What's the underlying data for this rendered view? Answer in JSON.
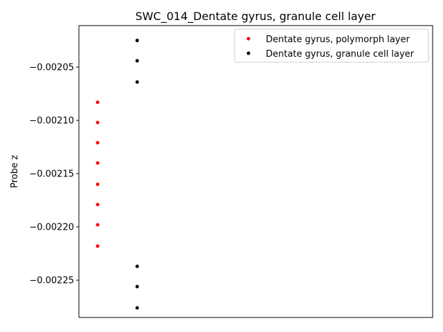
{
  "chart_data": {
    "type": "scatter",
    "title": "SWC_014_Dentate gyrus, granule cell layer",
    "xlabel": "",
    "ylabel": "Probe z",
    "ylim": [
      -0.002285,
      -0.002011
    ],
    "xlim": [
      0.15,
      1.0
    ],
    "x_ticks_visible": false,
    "grid": false,
    "legend_position": "top-right",
    "y_ticks": [
      {
        "value": -0.00205,
        "label": "−0.00205"
      },
      {
        "value": -0.0021,
        "label": "−0.00210"
      },
      {
        "value": -0.00215,
        "label": "−0.00215"
      },
      {
        "value": -0.0022,
        "label": "−0.00220"
      },
      {
        "value": -0.00225,
        "label": "−0.00225"
      }
    ],
    "series": [
      {
        "name": "Dentate gyrus, polymorph layer",
        "color": "#ff0000",
        "x": [
          0.195,
          0.195,
          0.195,
          0.195,
          0.195,
          0.195,
          0.195,
          0.195
        ],
        "y": [
          -0.002083,
          -0.002102,
          -0.002121,
          -0.00214,
          -0.00216,
          -0.002179,
          -0.002198,
          -0.002218
        ]
      },
      {
        "name": "Dentate gyrus, granule cell layer",
        "color": "#000000",
        "x": [
          0.29,
          0.29,
          0.29,
          0.29,
          0.29,
          0.29
        ],
        "y": [
          -0.002025,
          -0.002044,
          -0.002064,
          -0.002237,
          -0.002256,
          -0.002276
        ]
      }
    ]
  }
}
